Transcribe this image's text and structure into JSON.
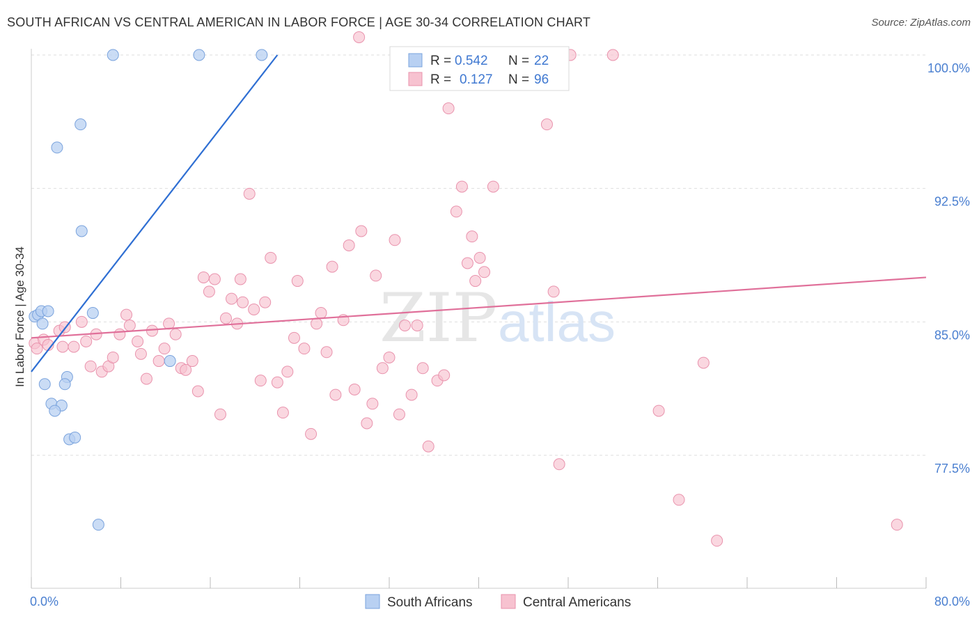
{
  "header": {
    "title": "SOUTH AFRICAN VS CENTRAL AMERICAN IN LABOR FORCE | AGE 30-34 CORRELATION CHART",
    "source": "Source: ZipAtlas.com"
  },
  "watermark": {
    "zip": "ZIP",
    "atlas": "atlas"
  },
  "colors": {
    "blue_fill": "#b8d0f2",
    "blue_stroke": "#7aa3dd",
    "blue_line": "#2f6fd3",
    "pink_fill": "#f7c2d0",
    "pink_stroke": "#e993ad",
    "pink_line": "#e0709a",
    "tick_label": "#4a7fd0",
    "grid": "#dedede"
  },
  "chart_data": {
    "type": "scatter",
    "title": "SOUTH AFRICAN VS CENTRAL AMERICAN IN LABOR FORCE | AGE 30-34 CORRELATION CHART",
    "xlabel": "",
    "ylabel": "In Labor Force | Age 30-34",
    "xlim": [
      0,
      80
    ],
    "ylim": [
      70.0,
      101.2
    ],
    "x_tick_labels": [
      {
        "value": 0,
        "label": "0.0%"
      },
      {
        "value": 80,
        "label": "80.0%"
      }
    ],
    "x_minor_ticks": [
      0,
      8,
      16,
      24,
      32,
      40,
      48,
      56,
      64,
      72,
      80
    ],
    "y_ticks": [
      {
        "value": 100.0,
        "label": "100.0%"
      },
      {
        "value": 92.5,
        "label": "92.5%"
      },
      {
        "value": 85.0,
        "label": "85.0%"
      },
      {
        "value": 77.5,
        "label": "77.5%"
      }
    ],
    "grid": true,
    "legend_placement": "bottom",
    "stats_box": [
      {
        "r_label": "R =",
        "r": "0.542",
        "n_label": "N =",
        "n": "22"
      },
      {
        "r_label": "R =",
        "r": "0.127",
        "n_label": "N =",
        "n": "96"
      }
    ],
    "series": [
      {
        "name": "South Africans",
        "color": "#b8d0f2",
        "trend": {
          "x": [
            0.0,
            22.0
          ],
          "y": [
            82.2,
            100.0
          ]
        },
        "points": [
          [
            0.3,
            85.3
          ],
          [
            0.6,
            85.4
          ],
          [
            0.9,
            85.6
          ],
          [
            1.0,
            84.9
          ],
          [
            1.5,
            85.6
          ],
          [
            2.3,
            94.8
          ],
          [
            4.4,
            96.1
          ],
          [
            4.5,
            90.1
          ],
          [
            5.5,
            85.5
          ],
          [
            7.3,
            100.0
          ],
          [
            15.0,
            100.0
          ],
          [
            20.6,
            100.0
          ],
          [
            1.2,
            81.5
          ],
          [
            1.8,
            80.4
          ],
          [
            2.7,
            80.3
          ],
          [
            3.2,
            81.9
          ],
          [
            3.0,
            81.5
          ],
          [
            3.4,
            78.4
          ],
          [
            2.1,
            80.0
          ],
          [
            3.9,
            78.5
          ],
          [
            6.0,
            73.6
          ],
          [
            12.4,
            82.8
          ]
        ]
      },
      {
        "name": "Central Americans",
        "color": "#f7c2d0",
        "trend": {
          "x": [
            0.0,
            80.0
          ],
          "y": [
            84.1,
            87.5
          ]
        },
        "points": [
          [
            0.3,
            83.8
          ],
          [
            0.5,
            83.5
          ],
          [
            1.1,
            84.0
          ],
          [
            1.5,
            83.7
          ],
          [
            2.5,
            84.5
          ],
          [
            2.8,
            83.6
          ],
          [
            3.0,
            84.7
          ],
          [
            3.8,
            83.6
          ],
          [
            4.5,
            85.0
          ],
          [
            4.9,
            83.9
          ],
          [
            5.3,
            82.5
          ],
          [
            5.8,
            84.3
          ],
          [
            6.3,
            82.2
          ],
          [
            6.9,
            82.5
          ],
          [
            7.3,
            83.0
          ],
          [
            7.9,
            84.3
          ],
          [
            8.5,
            85.4
          ],
          [
            8.8,
            84.8
          ],
          [
            9.5,
            83.9
          ],
          [
            9.8,
            83.2
          ],
          [
            10.3,
            81.8
          ],
          [
            10.8,
            84.5
          ],
          [
            11.4,
            82.8
          ],
          [
            11.9,
            83.5
          ],
          [
            12.3,
            84.9
          ],
          [
            12.9,
            84.3
          ],
          [
            13.4,
            82.4
          ],
          [
            13.8,
            82.3
          ],
          [
            14.4,
            82.8
          ],
          [
            14.9,
            81.1
          ],
          [
            15.4,
            87.5
          ],
          [
            15.9,
            86.7
          ],
          [
            16.4,
            87.4
          ],
          [
            16.9,
            79.8
          ],
          [
            17.4,
            85.2
          ],
          [
            17.9,
            86.3
          ],
          [
            18.4,
            84.9
          ],
          [
            18.7,
            87.4
          ],
          [
            18.9,
            86.1
          ],
          [
            19.5,
            92.2
          ],
          [
            19.9,
            85.7
          ],
          [
            20.5,
            81.7
          ],
          [
            20.9,
            86.1
          ],
          [
            21.4,
            88.6
          ],
          [
            22.0,
            81.6
          ],
          [
            22.5,
            79.9
          ],
          [
            22.9,
            82.2
          ],
          [
            23.5,
            84.1
          ],
          [
            23.8,
            87.3
          ],
          [
            24.4,
            83.5
          ],
          [
            25.0,
            78.7
          ],
          [
            25.5,
            84.9
          ],
          [
            25.9,
            85.5
          ],
          [
            26.4,
            83.3
          ],
          [
            26.9,
            88.1
          ],
          [
            27.2,
            80.9
          ],
          [
            27.9,
            85.1
          ],
          [
            28.4,
            89.3
          ],
          [
            28.9,
            81.2
          ],
          [
            29.5,
            90.1
          ],
          [
            30.0,
            79.3
          ],
          [
            30.5,
            80.4
          ],
          [
            30.8,
            87.6
          ],
          [
            31.4,
            82.4
          ],
          [
            32.0,
            83.0
          ],
          [
            32.5,
            89.6
          ],
          [
            32.9,
            79.8
          ],
          [
            33.4,
            84.8
          ],
          [
            34.0,
            80.9
          ],
          [
            34.5,
            84.8
          ],
          [
            35.0,
            82.4
          ],
          [
            35.5,
            78.0
          ],
          [
            36.3,
            81.7
          ],
          [
            36.9,
            82.0
          ],
          [
            37.3,
            97.0
          ],
          [
            38.0,
            91.2
          ],
          [
            38.5,
            92.6
          ],
          [
            39.0,
            88.3
          ],
          [
            39.4,
            89.8
          ],
          [
            39.7,
            87.3
          ],
          [
            40.1,
            88.6
          ],
          [
            40.5,
            87.8
          ],
          [
            41.3,
            92.6
          ],
          [
            43.0,
            100.0
          ],
          [
            46.1,
            96.1
          ],
          [
            46.7,
            86.7
          ],
          [
            47.2,
            77.0
          ],
          [
            48.2,
            100.0
          ],
          [
            52.0,
            100.0
          ],
          [
            56.1,
            80.0
          ],
          [
            57.9,
            75.0
          ],
          [
            60.1,
            82.7
          ],
          [
            61.3,
            72.7
          ],
          [
            77.4,
            73.6
          ],
          [
            38.2,
            100.0
          ],
          [
            29.3,
            101.0
          ]
        ]
      }
    ]
  }
}
